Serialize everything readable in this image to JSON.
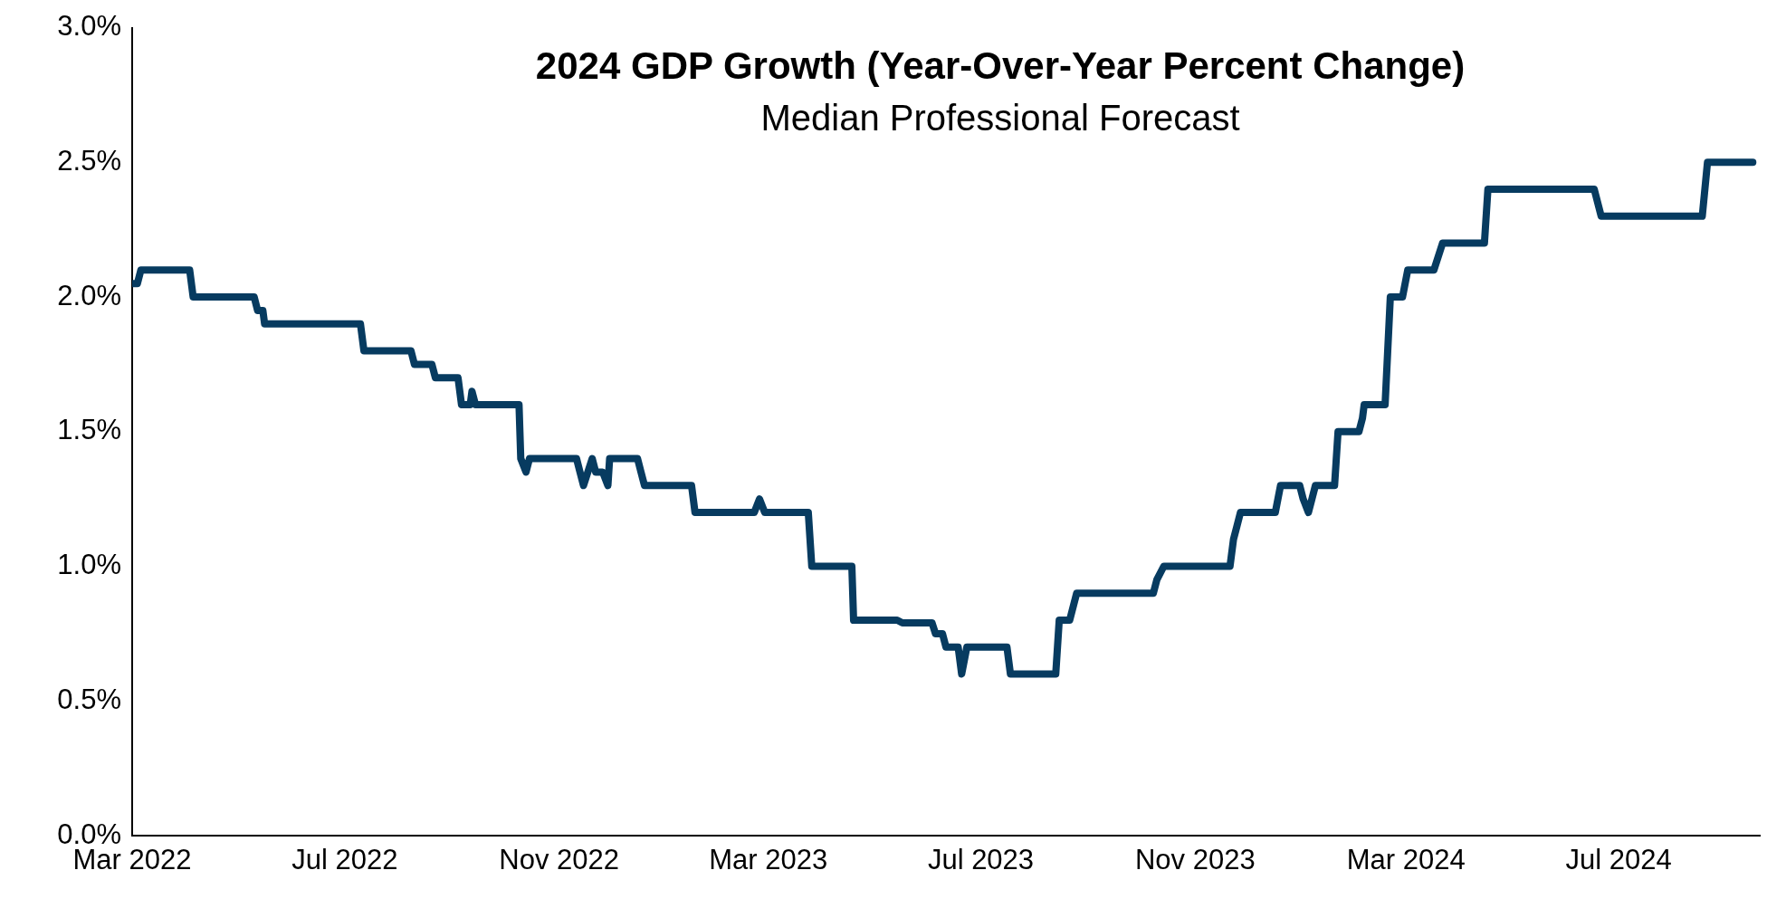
{
  "chart_data": {
    "type": "line",
    "title": "2024 GDP Growth (Year-Over-Year Percent Change)",
    "subtitle": "Median Professional Forecast",
    "x": [
      "2022-03-01",
      "2022-03-04",
      "2022-03-06",
      "2022-04-03",
      "2022-04-05",
      "2022-05-10",
      "2022-05-12",
      "2022-05-15",
      "2022-05-16",
      "2022-07-10",
      "2022-07-12",
      "2022-08-08",
      "2022-08-10",
      "2022-08-20",
      "2022-08-22",
      "2022-09-04",
      "2022-09-06",
      "2022-09-11",
      "2022-09-12",
      "2022-09-14",
      "2022-10-09",
      "2022-10-10",
      "2022-10-13",
      "2022-10-15",
      "2022-11-11",
      "2022-11-13",
      "2022-11-15",
      "2022-11-20",
      "2022-11-22",
      "2022-11-26",
      "2022-11-29",
      "2022-11-30",
      "2022-12-16",
      "2022-12-18",
      "2022-12-20",
      "2023-01-16",
      "2023-01-18",
      "2023-02-21",
      "2023-02-24",
      "2023-02-27",
      "2023-03-24",
      "2023-03-26",
      "2023-04-18",
      "2023-04-19",
      "2023-05-14",
      "2023-05-17",
      "2023-06-03",
      "2023-06-05",
      "2023-06-09",
      "2023-06-11",
      "2023-06-18",
      "2023-06-20",
      "2023-06-23",
      "2023-07-16",
      "2023-07-18",
      "2023-08-13",
      "2023-08-15",
      "2023-08-21",
      "2023-08-25",
      "2023-10-08",
      "2023-10-10",
      "2023-10-14",
      "2023-11-21",
      "2023-11-23",
      "2023-11-25",
      "2023-11-27",
      "2023-12-17",
      "2023-12-20",
      "2023-12-31",
      "2024-01-02",
      "2024-01-05",
      "2024-01-07",
      "2024-01-09",
      "2024-01-20",
      "2024-01-22",
      "2024-02-03",
      "2024-02-05",
      "2024-02-06",
      "2024-02-18",
      "2024-02-21",
      "2024-02-28",
      "2024-03-02",
      "2024-03-17",
      "2024-03-22",
      "2024-04-15",
      "2024-04-17",
      "2024-06-17",
      "2024-06-21",
      "2024-08-18",
      "2024-08-21",
      "2024-09-16"
    ],
    "series": [
      {
        "color": "#073b60",
        "values": [
          2.05,
          2.05,
          2.1,
          2.1,
          2.0,
          2.0,
          1.95,
          1.95,
          1.9,
          1.9,
          1.8,
          1.8,
          1.75,
          1.75,
          1.7,
          1.7,
          1.6,
          1.6,
          1.65,
          1.6,
          1.6,
          1.4,
          1.35,
          1.4,
          1.4,
          1.35,
          1.3,
          1.4,
          1.35,
          1.35,
          1.3,
          1.4,
          1.4,
          1.35,
          1.3,
          1.3,
          1.2,
          1.2,
          1.25,
          1.2,
          1.2,
          1.0,
          1.0,
          0.8,
          0.8,
          0.79,
          0.79,
          0.75,
          0.75,
          0.7,
          0.7,
          0.6,
          0.7,
          0.7,
          0.6,
          0.6,
          0.8,
          0.8,
          0.9,
          0.9,
          0.95,
          1.0,
          1.0,
          1.1,
          1.15,
          1.2,
          1.2,
          1.3,
          1.3,
          1.25,
          1.2,
          1.25,
          1.3,
          1.3,
          1.5,
          1.5,
          1.55,
          1.6,
          1.6,
          2.0,
          2.0,
          2.1,
          2.1,
          2.2,
          2.2,
          2.4,
          2.4,
          2.3,
          2.3,
          2.5,
          2.5
        ]
      }
    ],
    "xlim": [
      "2022-03-01",
      "2024-09-20"
    ],
    "xticks": [
      {
        "value": "2022-03-01",
        "label": "Mar 2022"
      },
      {
        "value": "2022-07-01",
        "label": "Jul 2022"
      },
      {
        "value": "2022-11-01",
        "label": "Nov 2022"
      },
      {
        "value": "2023-03-01",
        "label": "Mar 2023"
      },
      {
        "value": "2023-07-01",
        "label": "Jul 2023"
      },
      {
        "value": "2023-11-01",
        "label": "Nov 2023"
      },
      {
        "value": "2024-03-01",
        "label": "Mar 2024"
      },
      {
        "value": "2024-07-01",
        "label": "Jul 2024"
      }
    ],
    "ylim": [
      0,
      3
    ],
    "yticks": [
      {
        "value": 0,
        "label": "0.0%"
      },
      {
        "value": 0.5,
        "label": "0.5%"
      },
      {
        "value": 1,
        "label": "1.0%"
      },
      {
        "value": 1.5,
        "label": "1.5%"
      },
      {
        "value": 2,
        "label": "2.0%"
      },
      {
        "value": 2.5,
        "label": "2.5%"
      },
      {
        "value": 3,
        "label": "3.0%"
      }
    ],
    "grid": false,
    "legend": false,
    "marker": "none",
    "line_style": "solid"
  }
}
